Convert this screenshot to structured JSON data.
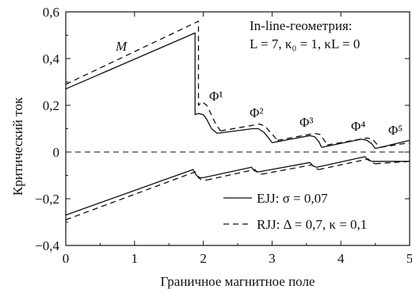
{
  "chart_data": {
    "type": "line",
    "xlabel": "Граничное магнитное поле",
    "ylabel": "Критический ток",
    "xlim": [
      0,
      5
    ],
    "ylim": [
      -0.4,
      0.6
    ],
    "xticks": [
      "0",
      "1",
      "2",
      "3",
      "4",
      "5"
    ],
    "yticks": [
      "−0,4",
      "−0,2",
      "0",
      "0,2",
      "0,4",
      "0,6"
    ],
    "xtick_values": [
      0,
      1,
      2,
      3,
      4,
      5
    ],
    "ytick_values": [
      -0.4,
      -0.2,
      0,
      0.2,
      0.4,
      0.6
    ],
    "grid": false,
    "annotation": {
      "line1": "In-line-геометрия:",
      "line2": "L = 7, κ₀ = 1, κL = 0"
    },
    "curve_labels": {
      "M": "M",
      "phi1": "Φ¹",
      "phi2": "Φ²",
      "phi3": "Φ³",
      "phi4": "Φ⁴",
      "phi5": "Φ⁵"
    },
    "zero_line": {
      "y": 0,
      "style": "dashed"
    },
    "legend_position": "bottom-right",
    "series": [
      {
        "name": "EJJ: σ = 0,07",
        "style": "solid",
        "upper": [
          {
            "x": [
              0,
              1.88,
              1.88,
              1.93,
              2.0,
              2.05,
              2.12,
              2.2
            ],
            "y": [
              0.27,
              0.51,
              0.16,
              0.165,
              0.16,
              0.14,
              0.1,
              0.08
            ]
          },
          {
            "x": [
              2.2,
              2.72,
              2.8,
              2.88,
              2.95,
              3.0
            ],
            "y": [
              0.08,
              0.1,
              0.1,
              0.085,
              0.06,
              0.04
            ]
          },
          {
            "x": [
              3.0,
              3.55,
              3.62,
              3.68,
              3.72
            ],
            "y": [
              0.04,
              0.07,
              0.065,
              0.045,
              0.02
            ]
          },
          {
            "x": [
              3.72,
              4.3,
              4.38,
              4.45,
              4.5
            ],
            "y": [
              0.02,
              0.055,
              0.05,
              0.035,
              0.015
            ]
          },
          {
            "x": [
              4.5,
              5.0
            ],
            "y": [
              0.015,
              0.05
            ]
          }
        ],
        "lower": [
          {
            "x": [
              0,
              1.85,
              1.9,
              1.95,
              2.0
            ],
            "y": [
              -0.27,
              -0.075,
              -0.1,
              -0.11,
              -0.11
            ]
          },
          {
            "x": [
              2.0,
              2.7,
              2.74,
              2.8
            ],
            "y": [
              -0.11,
              -0.065,
              -0.08,
              -0.085
            ]
          },
          {
            "x": [
              2.8,
              3.55,
              3.6,
              3.65
            ],
            "y": [
              -0.085,
              -0.045,
              -0.06,
              -0.065
            ]
          },
          {
            "x": [
              3.65,
              4.35,
              4.4,
              4.45
            ],
            "y": [
              -0.065,
              -0.02,
              -0.035,
              -0.04
            ]
          },
          {
            "x": [
              4.45,
              5.0
            ],
            "y": [
              -0.04,
              -0.04
            ]
          }
        ]
      },
      {
        "name": "RJJ: Δ = 0,7, κ = 0,1",
        "style": "dashed",
        "upper": [
          {
            "x": [
              0,
              1.93,
              1.93,
              1.98,
              2.05,
              2.1,
              2.18,
              2.25
            ],
            "y": [
              0.29,
              0.56,
              0.2,
              0.215,
              0.2,
              0.17,
              0.12,
              0.09
            ]
          },
          {
            "x": [
              2.25,
              2.82,
              2.9,
              2.96,
              3.02,
              3.08
            ],
            "y": [
              0.09,
              0.12,
              0.11,
              0.09,
              0.07,
              0.05
            ]
          },
          {
            "x": [
              3.08,
              3.62,
              3.7,
              3.76,
              3.8
            ],
            "y": [
              0.05,
              0.08,
              0.075,
              0.05,
              0.03
            ]
          },
          {
            "x": [
              3.8,
              4.38,
              4.46,
              4.52,
              4.58
            ],
            "y": [
              0.03,
              0.06,
              0.055,
              0.035,
              0.02
            ]
          },
          {
            "x": [
              4.58,
              5.0
            ],
            "y": [
              0.02,
              0.04
            ]
          }
        ],
        "lower": [
          {
            "x": [
              0,
              1.88,
              1.93,
              1.98,
              2.05
            ],
            "y": [
              -0.29,
              -0.085,
              -0.11,
              -0.12,
              -0.12
            ]
          },
          {
            "x": [
              2.05,
              2.75,
              2.79,
              2.85
            ],
            "y": [
              -0.12,
              -0.075,
              -0.09,
              -0.095
            ]
          },
          {
            "x": [
              2.85,
              3.58,
              3.63,
              3.68
            ],
            "y": [
              -0.095,
              -0.055,
              -0.07,
              -0.075
            ]
          },
          {
            "x": [
              3.68,
              4.4,
              4.45,
              4.5
            ],
            "y": [
              -0.075,
              -0.03,
              -0.045,
              -0.05
            ]
          },
          {
            "x": [
              4.5,
              5.0
            ],
            "y": [
              -0.05,
              -0.04
            ]
          }
        ]
      }
    ]
  }
}
